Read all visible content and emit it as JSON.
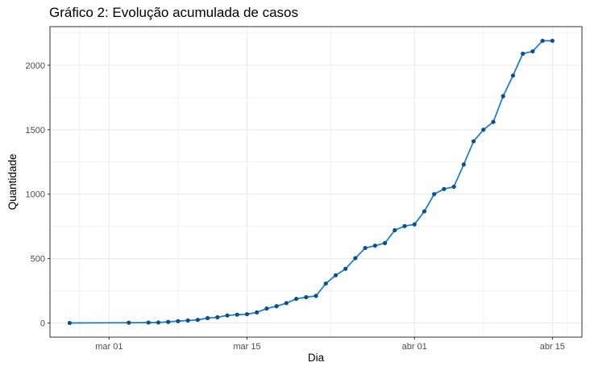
{
  "chart_data": {
    "type": "line",
    "title": "Gráfico 2: Evolução acumulada de casos",
    "xlabel": "Dia",
    "ylabel": "Quantidade",
    "x_ticks": [
      {
        "date": "2020-03-01",
        "label": "mar 01"
      },
      {
        "date": "2020-03-15",
        "label": "mar 15"
      },
      {
        "date": "2020-04-01",
        "label": "abr 01"
      },
      {
        "date": "2020-04-15",
        "label": "abr 15"
      }
    ],
    "y_ticks": [
      0,
      500,
      1000,
      1500,
      2000
    ],
    "xlim": [
      "2020-02-24",
      "2020-04-18"
    ],
    "ylim": [
      -110,
      2300
    ],
    "grid": true,
    "legend": "none",
    "colors": {
      "line": "#1f7fd6",
      "point": "#0b4f8c",
      "grid": "#ebebeb",
      "border": "#333333"
    },
    "series": [
      {
        "x": [
          "2020-02-26",
          "2020-03-03",
          "2020-03-05",
          "2020-03-06",
          "2020-03-07",
          "2020-03-08",
          "2020-03-09",
          "2020-03-10",
          "2020-03-11",
          "2020-03-12",
          "2020-03-13",
          "2020-03-14",
          "2020-03-15",
          "2020-03-16",
          "2020-03-17",
          "2020-03-18",
          "2020-03-19",
          "2020-03-20",
          "2020-03-21",
          "2020-03-22",
          "2020-03-23",
          "2020-03-24",
          "2020-03-25",
          "2020-03-26",
          "2020-03-27",
          "2020-03-28",
          "2020-03-29",
          "2020-03-30",
          "2020-03-31",
          "2020-04-01",
          "2020-04-02",
          "2020-04-03",
          "2020-04-04",
          "2020-04-05",
          "2020-04-06",
          "2020-04-07",
          "2020-04-08",
          "2020-04-09",
          "2020-04-10",
          "2020-04-11",
          "2020-04-12",
          "2020-04-13",
          "2020-04-14",
          "2020-04-15"
        ],
        "y": [
          0,
          2,
          3,
          4,
          8,
          14,
          19,
          24,
          38,
          44,
          58,
          64,
          68,
          82,
          112,
          130,
          154,
          187,
          200,
          210,
          306,
          370,
          420,
          503,
          582,
          600,
          620,
          720,
          752,
          765,
          866,
          1000,
          1040,
          1057,
          1230,
          1410,
          1500,
          1560,
          1760,
          1920,
          2090,
          2108,
          2190,
          2190
        ]
      }
    ]
  }
}
